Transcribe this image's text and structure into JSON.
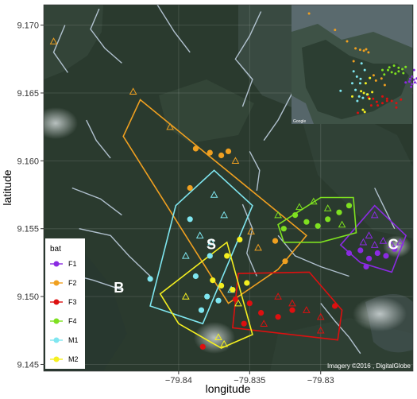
{
  "axes": {
    "xlabel": "longitude",
    "ylabel": "latitude",
    "x_ticks": [
      {
        "value": -79.84,
        "label": "−79.84"
      },
      {
        "value": -79.835,
        "label": "−79.835"
      },
      {
        "value": -79.83,
        "label": "−79.83"
      }
    ],
    "y_ticks": [
      {
        "value": 9.145,
        "label": "9.145"
      },
      {
        "value": 9.15,
        "label": "9.150"
      },
      {
        "value": 9.155,
        "label": "9.155"
      },
      {
        "value": 9.16,
        "label": "9.160"
      },
      {
        "value": 9.165,
        "label": "9.165"
      },
      {
        "value": 9.17,
        "label": "9.170"
      }
    ],
    "xlim": [
      -79.8495,
      -79.8235
    ],
    "ylim": [
      9.1445,
      9.1715
    ]
  },
  "legend": {
    "title": "bat",
    "entries": [
      {
        "name": "F1",
        "color": "#8a2be2"
      },
      {
        "name": "F2",
        "color": "#f0a020"
      },
      {
        "name": "F3",
        "color": "#dd1010"
      },
      {
        "name": "F4",
        "color": "#7ee020"
      },
      {
        "name": "M1",
        "color": "#7fe6f0"
      },
      {
        "name": "M2",
        "color": "#f5f020"
      }
    ]
  },
  "region_labels": [
    {
      "text": "B",
      "lon": -79.8442,
      "lat": 9.1503
    },
    {
      "text": "S",
      "lon": -79.8377,
      "lat": 9.1535
    },
    {
      "text": "C",
      "lon": -79.8249,
      "lat": 9.1535
    }
  ],
  "attribution": "Imagery ©2016 , DigitalGlobe",
  "inset_attribution": "Google",
  "chart_data": {
    "type": "scatter",
    "xlabel": "longitude",
    "ylabel": "latitude",
    "xlim": [
      -79.8495,
      -79.8235
    ],
    "ylim": [
      9.1445,
      9.1715
    ],
    "grid": true,
    "legend_placement": "bottom-left",
    "series": [
      {
        "name": "F1",
        "color": "#8a2be2",
        "hull": [
          [
            -79.8286,
            9.1538
          ],
          [
            -79.8262,
            9.1567
          ],
          [
            -79.824,
            9.1545
          ],
          [
            -79.825,
            9.1518
          ],
          [
            -79.8272,
            9.1525
          ]
        ],
        "points": [
          [
            -79.8272,
            9.1534
          ],
          [
            -79.8266,
            9.1528
          ],
          [
            -79.826,
            9.1532
          ],
          [
            -79.8254,
            9.153
          ],
          [
            -79.8248,
            9.1535
          ],
          [
            -79.8268,
            9.1522
          ],
          [
            -79.828,
            9.1532
          ]
        ],
        "triangles": [
          [
            -79.827,
            9.154
          ],
          [
            -79.8262,
            9.1538
          ],
          [
            -79.8256,
            9.1541
          ],
          [
            -79.825,
            9.1538
          ],
          [
            -79.8244,
            9.154
          ],
          [
            -79.8266,
            9.1545
          ],
          [
            -79.8262,
            9.156
          ]
        ]
      },
      {
        "name": "F2",
        "color": "#f0a020",
        "hull": [
          [
            -79.8427,
            9.1645
          ],
          [
            -79.8439,
            9.1618
          ],
          [
            -79.8365,
            9.1495
          ],
          [
            -79.833,
            9.152
          ],
          [
            -79.831,
            9.1545
          ]
        ],
        "points": [
          [
            -79.8388,
            9.1609
          ],
          [
            -79.8378,
            9.1606
          ],
          [
            -79.837,
            9.1604
          ],
          [
            -79.8365,
            9.1607
          ],
          [
            -79.8392,
            9.158
          ],
          [
            -79.8332,
            9.1541
          ],
          [
            -79.8325,
            9.1526
          ]
        ],
        "triangles": [
          [
            -79.8488,
            9.1688
          ],
          [
            -79.8432,
            9.1651
          ],
          [
            -79.8406,
            9.1625
          ],
          [
            -79.836,
            9.16
          ],
          [
            -79.8349,
            9.1548
          ],
          [
            -79.8344,
            9.1536
          ]
        ]
      },
      {
        "name": "F3",
        "color": "#dd1010",
        "hull": [
          [
            -79.8358,
            9.1517
          ],
          [
            -79.8308,
            9.1518
          ],
          [
            -79.8285,
            9.149
          ],
          [
            -79.8288,
            9.1468
          ],
          [
            -79.8362,
            9.1477
          ]
        ],
        "points": [
          [
            -79.836,
            9.1498
          ],
          [
            -79.835,
            9.1495
          ],
          [
            -79.8342,
            9.1488
          ],
          [
            -79.833,
            9.1485
          ],
          [
            -79.832,
            9.149
          ],
          [
            -79.8354,
            9.148
          ],
          [
            -79.8383,
            9.1463
          ],
          [
            -79.829,
            9.1493
          ]
        ],
        "triangles": [
          [
            -79.833,
            9.15
          ],
          [
            -79.832,
            9.1495
          ],
          [
            -79.831,
            9.149
          ],
          [
            -79.83,
            9.1485
          ],
          [
            -79.834,
            9.148
          ],
          [
            -79.83,
            9.1475
          ]
        ]
      },
      {
        "name": "F4",
        "color": "#7ee020",
        "hull": [
          [
            -79.833,
            9.1553
          ],
          [
            -79.83,
            9.1573
          ],
          [
            -79.8277,
            9.1573
          ],
          [
            -79.8275,
            9.1547
          ],
          [
            -79.83,
            9.154
          ],
          [
            -79.8326,
            9.154
          ]
        ],
        "points": [
          [
            -79.8318,
            9.156
          ],
          [
            -79.831,
            9.1555
          ],
          [
            -79.8302,
            9.1552
          ],
          [
            -79.8295,
            9.1557
          ],
          [
            -79.8287,
            9.1562
          ],
          [
            -79.828,
            9.1567
          ],
          [
            -79.8326,
            9.155
          ]
        ],
        "triangles": [
          [
            -79.8315,
            9.1566
          ],
          [
            -79.8305,
            9.157
          ],
          [
            -79.8295,
            9.1565
          ],
          [
            -79.8285,
            9.1553
          ],
          [
            -79.833,
            9.156
          ]
        ]
      },
      {
        "name": "M1",
        "color": "#7fe6f0",
        "hull": [
          [
            -79.8375,
            9.1593
          ],
          [
            -79.8348,
            9.1567
          ],
          [
            -79.8383,
            9.148
          ],
          [
            -79.842,
            9.1493
          ],
          [
            -79.8402,
            9.1567
          ]
        ],
        "points": [
          [
            -79.8392,
            9.1557
          ],
          [
            -79.8378,
            9.153
          ],
          [
            -79.8388,
            9.1515
          ],
          [
            -79.838,
            9.15
          ],
          [
            -79.8372,
            9.1497
          ],
          [
            -79.8384,
            9.149
          ],
          [
            -79.842,
            9.1513
          ]
        ],
        "triangles": [
          [
            -79.8375,
            9.1575
          ],
          [
            -79.8368,
            9.156
          ],
          [
            -79.8385,
            9.1545
          ],
          [
            -79.8377,
            9.154
          ],
          [
            -79.8395,
            9.153
          ],
          [
            -79.8363,
            9.1505
          ]
        ]
      },
      {
        "name": "M2",
        "color": "#f5f020",
        "hull": [
          [
            -79.8413,
            9.1502
          ],
          [
            -79.8366,
            9.154
          ],
          [
            -79.8348,
            9.1472
          ],
          [
            -79.837,
            9.1462
          ],
          [
            -79.84,
            9.148
          ]
        ],
        "points": [
          [
            -79.8376,
            9.1512
          ],
          [
            -79.837,
            9.1508
          ],
          [
            -79.8362,
            9.1505
          ],
          [
            -79.8366,
            9.153
          ],
          [
            -79.8357,
            9.1542
          ],
          [
            -79.8352,
            9.151
          ]
        ],
        "triangles": [
          [
            -79.8395,
            9.15
          ],
          [
            -79.8372,
            9.147
          ],
          [
            -79.8368,
            9.1465
          ],
          [
            -79.8358,
            9.1495
          ]
        ]
      }
    ],
    "streams": [
      [
        [
          -79.848,
          9.17
        ],
        [
          -79.8488,
          9.168
        ],
        [
          -79.8478,
          9.1665
        ]
      ],
      [
        [
          -79.8456,
          9.1712
        ],
        [
          -79.8462,
          9.1697
        ],
        [
          -79.8452,
          9.1683
        ],
        [
          -79.844,
          9.1672
        ]
      ],
      [
        [
          -79.8415,
          9.1715
        ],
        [
          -79.8403,
          9.1695
        ],
        [
          -79.8392,
          9.168
        ]
      ],
      [
        [
          -79.8342,
          9.171
        ],
        [
          -79.835,
          9.1692
        ],
        [
          -79.836,
          9.1675
        ],
        [
          -79.8348,
          9.166
        ],
        [
          -79.8355,
          9.164
        ]
      ],
      [
        [
          -79.8465,
          9.163
        ],
        [
          -79.8458,
          9.1615
        ],
        [
          -79.8448,
          9.1602
        ]
      ],
      [
        [
          -79.835,
          9.1607
        ],
        [
          -79.8343,
          9.1593
        ],
        [
          -79.8345,
          9.1578
        ]
      ],
      [
        [
          -79.8475,
          9.158
        ],
        [
          -79.8455,
          9.1572
        ],
        [
          -79.844,
          9.156
        ]
      ],
      [
        [
          -79.847,
          9.155
        ],
        [
          -79.8448,
          9.1545
        ],
        [
          -79.8435,
          9.153
        ],
        [
          -79.842,
          9.1515
        ]
      ],
      [
        [
          -79.8482,
          9.1518
        ],
        [
          -79.846,
          9.1512
        ],
        [
          -79.844,
          9.1505
        ]
      ],
      [
        [
          -79.8355,
          9.1568
        ],
        [
          -79.8348,
          9.155
        ],
        [
          -79.8352,
          9.1532
        ],
        [
          -79.8345,
          9.1515
        ]
      ],
      [
        [
          -79.833,
          9.1545
        ],
        [
          -79.8318,
          9.153
        ],
        [
          -79.83,
          9.1522
        ],
        [
          -79.828,
          9.1515
        ]
      ],
      [
        [
          -79.83,
          9.1495
        ],
        [
          -79.829,
          9.1482
        ],
        [
          -79.828,
          9.147
        ],
        [
          -79.8272,
          9.1458
        ]
      ],
      [
        [
          -79.8262,
          9.158
        ],
        [
          -79.8255,
          9.1565
        ],
        [
          -79.8248,
          9.155
        ]
      ],
      [
        [
          -79.832,
          9.165
        ],
        [
          -79.833,
          9.163
        ],
        [
          -79.834,
          9.1615
        ]
      ]
    ]
  }
}
